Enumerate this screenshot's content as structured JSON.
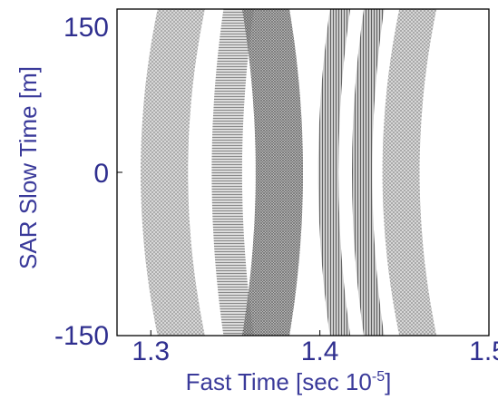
{
  "chart_data": {
    "type": "heatmap",
    "title": "",
    "xlabel": "Fast Time [sec 10",
    "xlabel_sup": "-5",
    "xlabel_end": "]",
    "ylabel": "SAR Slow Time [m]",
    "xlim": [
      1.28,
      1.5
    ],
    "ylim": [
      -150,
      150
    ],
    "x_ticks": [
      "1.3",
      "1.4",
      "1.5"
    ],
    "x_tick_values": [
      1.3,
      1.4,
      1.5
    ],
    "y_ticks": [
      "150",
      "0",
      "-150"
    ],
    "y_tick_values": [
      150,
      0,
      -150
    ],
    "grid": false,
    "colormap": "gray",
    "label_color": "#3a3a9a",
    "description_bands": [
      {
        "x_center_at_zero": 1.308,
        "x_center_at_edge": 1.318,
        "x_width": 0.028,
        "intensity": 0.35
      },
      {
        "x_center_at_zero": 1.345,
        "x_center_at_edge": 1.352,
        "x_width": 0.018,
        "intensity": 0.45
      },
      {
        "x_center_at_zero": 1.376,
        "x_center_at_edge": 1.368,
        "x_width": 0.028,
        "intensity": 0.6
      },
      {
        "x_center_at_zero": 1.405,
        "x_center_at_edge": 1.412,
        "x_width": 0.012,
        "intensity": 0.7
      },
      {
        "x_center_at_zero": 1.425,
        "x_center_at_edge": 1.432,
        "x_width": 0.012,
        "intensity": 0.75
      },
      {
        "x_center_at_zero": 1.448,
        "x_center_at_edge": 1.458,
        "x_width": 0.022,
        "intensity": 0.4
      }
    ]
  }
}
